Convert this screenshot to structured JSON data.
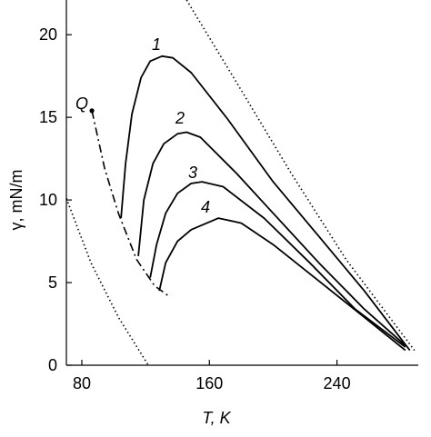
{
  "chart_data": {
    "type": "line",
    "x_label": "T, K",
    "y_label": "γ, mN/m",
    "xlim": [
      70.3,
      291
    ],
    "ylim": [
      0,
      22.1
    ],
    "xticks": [
      80,
      160,
      240
    ],
    "yticks": [
      0,
      5,
      10,
      15,
      20
    ],
    "series": [
      {
        "name": "1",
        "color": "#000000",
        "style": "solid",
        "x": [
          104.6,
          107.4,
          111.4,
          117.1,
          122.9,
          130.3,
          137.1,
          148.6,
          171.4,
          200,
          228.6,
          257.1,
          285.7
        ],
        "values": [
          8.9,
          12.2,
          15.2,
          17.4,
          18.4,
          18.7,
          18.6,
          17.7,
          14.9,
          11.1,
          7.8,
          4.5,
          0.9
        ]
      },
      {
        "name": "2",
        "color": "#000000",
        "style": "solid",
        "x": [
          115.4,
          118.9,
          124.6,
          131.4,
          140,
          145.7,
          154.3,
          177.1,
          200,
          228.6,
          257.1,
          282.9
        ],
        "values": [
          6.6,
          10.0,
          12.2,
          13.4,
          14.0,
          14.1,
          13.8,
          11.6,
          9.2,
          6.2,
          3.4,
          1.2
        ]
      },
      {
        "name": "3",
        "color": "#000000",
        "style": "solid",
        "x": [
          122.9,
          126.9,
          132.6,
          140,
          148.6,
          155.4,
          168.6,
          194.3,
          222.9,
          251.4,
          282.9
        ],
        "values": [
          5.3,
          7.3,
          9.2,
          10.4,
          11.0,
          11.1,
          10.8,
          8.9,
          6.2,
          3.4,
          1.1
        ]
      },
      {
        "name": "4",
        "color": "#000000",
        "style": "solid",
        "x": [
          128.6,
          132.6,
          140,
          148.6,
          165.7,
          180,
          200,
          228.6,
          257.1,
          282.9
        ],
        "values": [
          4.5,
          6.2,
          7.5,
          8.2,
          8.9,
          8.6,
          7.3,
          5.1,
          2.9,
          0.9
        ]
      }
    ],
    "extra_lines": [
      {
        "color": "#000000",
        "style": "dashdot",
        "x": [
          86.3,
          94.3,
          102.9,
          114.3,
          125.7,
          134.3
        ],
        "values": [
          15.4,
          11.9,
          9.2,
          6.4,
          4.8,
          4.2
        ]
      },
      {
        "color": "#000000",
        "style": "dotted",
        "x": [
          145.7,
          177.1,
          211.4,
          245.7,
          288.6
        ],
        "values": [
          22.1,
          17.1,
          11.6,
          6.4,
          0.9
        ]
      },
      {
        "color": "#000000",
        "style": "dotted",
        "x": [
          70.3,
          85.7,
          102.9,
          121.7
        ],
        "values": [
          10.1,
          6.2,
          2.9,
          0
        ]
      }
    ],
    "point": {
      "label": "Q",
      "x": 86.3,
      "value": 15.4
    }
  }
}
